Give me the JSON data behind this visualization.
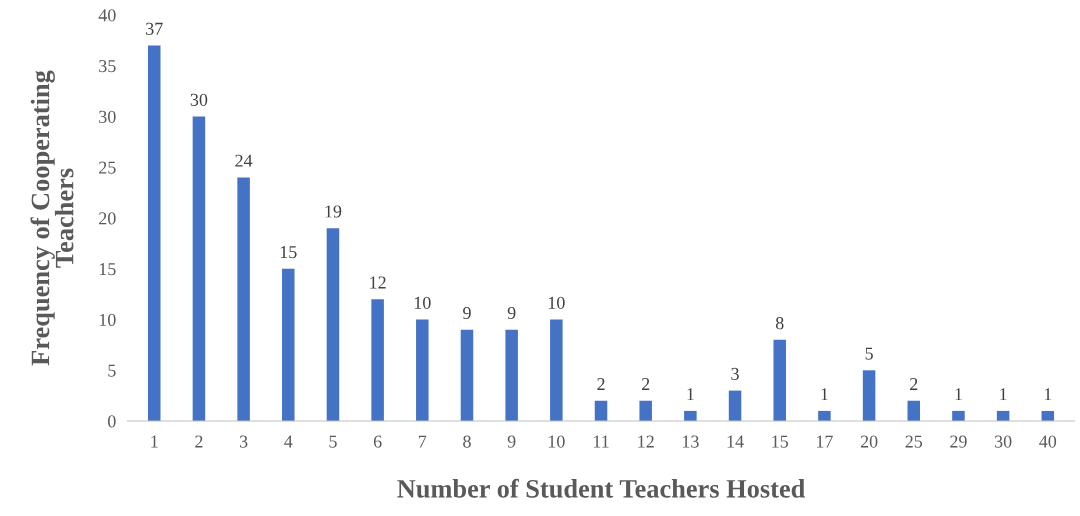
{
  "chart_data": {
    "type": "bar",
    "xlabel": "Number of Student Teachers Hosted",
    "ylabel": "Frequency of Cooperating Teachers",
    "categories": [
      "1",
      "2",
      "3",
      "4",
      "5",
      "6",
      "7",
      "8",
      "9",
      "10",
      "11",
      "12",
      "13",
      "14",
      "15",
      "17",
      "20",
      "25",
      "29",
      "30",
      "40"
    ],
    "values": [
      37,
      30,
      24,
      15,
      19,
      12,
      10,
      9,
      9,
      10,
      2,
      2,
      1,
      3,
      8,
      1,
      5,
      2,
      1,
      1,
      1
    ],
    "color": "#4472c4",
    "ylim": [
      0,
      40
    ],
    "yticks": [
      0,
      5,
      10,
      15,
      20,
      25,
      30,
      35,
      40
    ],
    "data_labels": true,
    "grid": false,
    "legend": false
  }
}
